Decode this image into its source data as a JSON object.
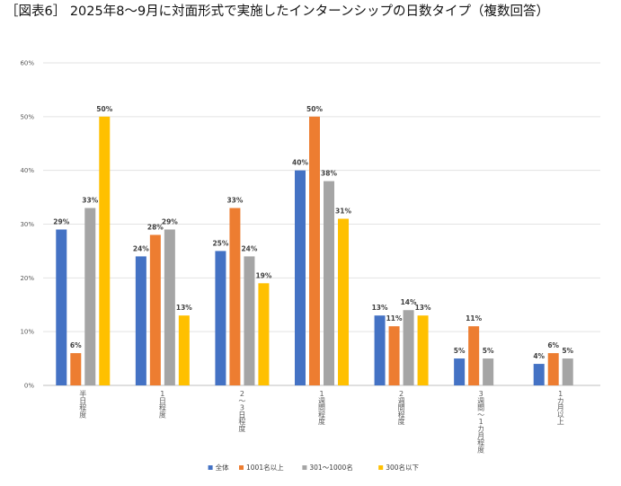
{
  "title": "［図表6］ 2025年8〜9月に対面形式で実施したインターンシップの日数タイプ（複数回答）",
  "chart_data": {
    "type": "bar",
    "categories": [
      "半日程度",
      "1日程度",
      "2〜3日程度",
      "1週間程度",
      "2週間程度",
      "3週間〜1カ月程度",
      "1カ月以上"
    ],
    "series": [
      {
        "name": "全体",
        "color": "#4472C4",
        "values": [
          29,
          24,
          25,
          40,
          13,
          5,
          4
        ]
      },
      {
        "name": "1001名以上",
        "color": "#ED7D31",
        "values": [
          6,
          28,
          33,
          50,
          11,
          11,
          6
        ]
      },
      {
        "name": "301〜1000名",
        "color": "#A5A5A5",
        "values": [
          33,
          29,
          24,
          38,
          14,
          5,
          5
        ]
      },
      {
        "name": "300名以下",
        "color": "#FFC000",
        "values": [
          50,
          13,
          19,
          31,
          13,
          null,
          null
        ]
      }
    ],
    "yticks": [
      "0%",
      "10%",
      "20%",
      "30%",
      "40%",
      "50%",
      "60%"
    ],
    "ylim": [
      0,
      60
    ],
    "grid": true,
    "legend": "bottom"
  }
}
